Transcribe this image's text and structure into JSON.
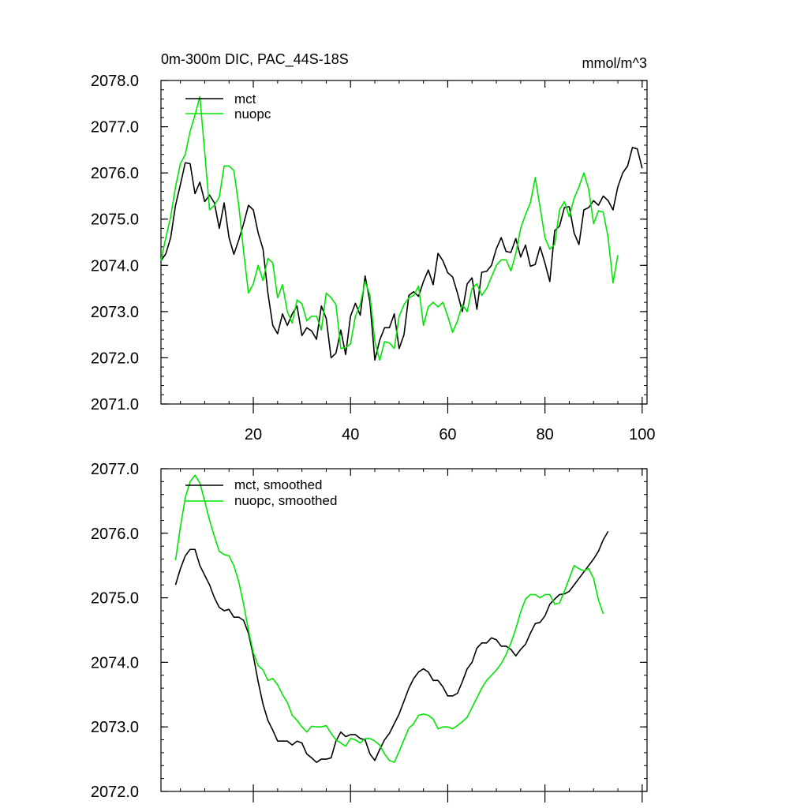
{
  "colors": {
    "mct": "#000000",
    "nuopc": "#00e600",
    "axis": "#000000",
    "background": "#ffffff"
  },
  "chart_data": [
    {
      "type": "line",
      "title": "0m-300m DIC, PAC_44S-18S",
      "units": "mmol/m^3",
      "xlabel": "",
      "ylabel": "",
      "xlim": [
        1,
        101
      ],
      "ylim": [
        2071.0,
        2078.0
      ],
      "xticks": [
        20,
        40,
        60,
        80,
        100
      ],
      "xtick_labels": [
        "20",
        "40",
        "60",
        "80",
        "100"
      ],
      "yticks": [
        2071.0,
        2072.0,
        2073.0,
        2074.0,
        2075.0,
        2076.0,
        2077.0,
        2078.0
      ],
      "ytick_labels": [
        "2071.0",
        "2072.0",
        "2073.0",
        "2074.0",
        "2075.0",
        "2076.0",
        "2077.0",
        "2078.0"
      ],
      "legend_position": "top-left",
      "x_start": 1,
      "series": [
        {
          "name": "mct",
          "color_key": "mct",
          "values": [
            2074.1,
            2074.25,
            2074.6,
            2075.3,
            2075.75,
            2076.22,
            2076.2,
            2075.55,
            2075.8,
            2075.38,
            2075.52,
            2075.35,
            2074.8,
            2075.35,
            2074.6,
            2074.24,
            2074.55,
            2074.9,
            2075.3,
            2075.2,
            2074.7,
            2074.35,
            2073.4,
            2072.7,
            2072.52,
            2072.95,
            2072.7,
            2072.95,
            2073.12,
            2072.48,
            2072.65,
            2072.58,
            2072.4,
            2073.12,
            2072.85,
            2072.0,
            2072.1,
            2072.6,
            2072.07,
            2072.9,
            2073.18,
            2072.92,
            2073.77,
            2073.2,
            2071.95,
            2072.38,
            2072.65,
            2072.65,
            2072.95,
            2072.2,
            2072.5,
            2073.35,
            2073.43,
            2073.33,
            2073.65,
            2073.9,
            2073.58,
            2074.26,
            2074.1,
            2073.84,
            2073.75,
            2073.4,
            2073.0,
            2073.6,
            2073.73,
            2073.05,
            2073.85,
            2073.87,
            2074.0,
            2074.36,
            2074.6,
            2074.3,
            2074.28,
            2074.58,
            2074.18,
            2074.44,
            2073.98,
            2074.02,
            2074.4,
            2074.05,
            2073.65,
            2074.75,
            2074.85,
            2075.25,
            2075.27,
            2074.7,
            2074.45,
            2075.2,
            2075.25,
            2075.4,
            2075.3,
            2075.5,
            2075.4,
            2075.2,
            2075.7,
            2076.0,
            2076.15,
            2076.55,
            2076.52,
            2076.1
          ]
        },
        {
          "name": "nuopc",
          "color_key": "nuopc",
          "values": [
            2074.1,
            2074.6,
            2075.05,
            2075.7,
            2076.2,
            2076.4,
            2076.9,
            2077.25,
            2077.65,
            2076.45,
            2075.2,
            2075.3,
            2075.48,
            2076.15,
            2076.15,
            2076.05,
            2075.3,
            2074.3,
            2073.4,
            2073.6,
            2074.0,
            2073.67,
            2074.15,
            2074.05,
            2073.3,
            2073.58,
            2073.0,
            2072.75,
            2073.25,
            2073.17,
            2072.8,
            2072.9,
            2072.9,
            2072.6,
            2073.4,
            2073.3,
            2073.15,
            2072.2,
            2072.22,
            2072.3,
            2072.9,
            2073.15,
            2073.65,
            2073.35,
            2072.35,
            2071.95,
            2072.35,
            2072.32,
            2072.2,
            2072.9,
            2073.15,
            2073.3,
            2073.35,
            2073.55,
            2072.7,
            2073.1,
            2073.2,
            2073.1,
            2073.2,
            2072.9,
            2072.55,
            2072.8,
            2073.15,
            2073.0,
            2073.5,
            2073.6,
            2073.35,
            2073.5,
            2073.75,
            2074.0,
            2074.12,
            2074.12,
            2073.88,
            2074.25,
            2074.8,
            2075.1,
            2075.35,
            2075.9,
            2075.25,
            2074.6,
            2074.35,
            2074.45,
            2075.2,
            2075.38,
            2075.05,
            2075.45,
            2075.7,
            2076.0,
            2075.65,
            2074.9,
            2075.18,
            2075.15,
            2074.6,
            2073.62,
            2074.22
          ]
        }
      ]
    },
    {
      "type": "line",
      "title": "",
      "xlabel": "",
      "ylabel": "",
      "xlim": [
        1,
        101
      ],
      "ylim": [
        2072.0,
        2077.0
      ],
      "xticks": [
        20,
        40,
        60,
        80,
        100
      ],
      "xtick_labels": [],
      "yticks": [
        2072.0,
        2073.0,
        2074.0,
        2075.0,
        2076.0,
        2077.0
      ],
      "ytick_labels": [
        "2072.0",
        "2073.0",
        "2074.0",
        "2075.0",
        "2076.0",
        "2077.0"
      ],
      "legend_position": "top-left",
      "x_start": 4,
      "series": [
        {
          "name": "mct, smoothed",
          "color_key": "mct",
          "values": [
            2075.2,
            2075.45,
            2075.65,
            2075.75,
            2075.75,
            2075.5,
            2075.35,
            2075.2,
            2075.0,
            2074.85,
            2074.8,
            2074.82,
            2074.7,
            2074.7,
            2074.65,
            2074.45,
            2074.1,
            2073.7,
            2073.35,
            2073.1,
            2072.95,
            2072.78,
            2072.78,
            2072.78,
            2072.72,
            2072.78,
            2072.75,
            2072.58,
            2072.52,
            2072.45,
            2072.5,
            2072.5,
            2072.52,
            2072.78,
            2072.92,
            2072.85,
            2072.88,
            2072.88,
            2072.82,
            2072.8,
            2072.58,
            2072.48,
            2072.65,
            2072.8,
            2072.9,
            2073.05,
            2073.2,
            2073.4,
            2073.6,
            2073.75,
            2073.85,
            2073.9,
            2073.85,
            2073.72,
            2073.72,
            2073.62,
            2073.48,
            2073.48,
            2073.52,
            2073.7,
            2073.9,
            2074.0,
            2074.22,
            2074.3,
            2074.3,
            2074.38,
            2074.35,
            2074.25,
            2074.25,
            2074.2,
            2074.1,
            2074.2,
            2074.28,
            2074.45,
            2074.6,
            2074.62,
            2074.72,
            2074.9,
            2074.98,
            2075.05,
            2075.06,
            2075.1,
            2075.2,
            2075.3,
            2075.4,
            2075.5,
            2075.6,
            2075.72,
            2075.9,
            2076.03
          ]
        },
        {
          "name": "nuopc, smoothed",
          "color_key": "nuopc",
          "values": [
            2075.58,
            2076.1,
            2076.55,
            2076.8,
            2076.9,
            2076.78,
            2076.5,
            2076.2,
            2075.95,
            2075.72,
            2075.67,
            2075.65,
            2075.5,
            2075.25,
            2074.9,
            2074.5,
            2074.15,
            2073.95,
            2073.88,
            2073.72,
            2073.75,
            2073.65,
            2073.5,
            2073.38,
            2073.18,
            2073.1,
            2073.0,
            2072.92,
            2073.01,
            2073.0,
            2073.0,
            2073.02,
            2072.9,
            2072.8,
            2072.75,
            2072.7,
            2072.82,
            2072.8,
            2072.75,
            2072.82,
            2072.82,
            2072.78,
            2072.72,
            2072.58,
            2072.48,
            2072.45,
            2072.62,
            2072.8,
            2072.98,
            2073.05,
            2073.18,
            2073.2,
            2073.18,
            2073.12,
            2072.97,
            2073.0,
            2073.0,
            2072.97,
            2073.02,
            2073.08,
            2073.15,
            2073.3,
            2073.45,
            2073.6,
            2073.72,
            2073.8,
            2073.88,
            2073.98,
            2074.12,
            2074.3,
            2074.52,
            2074.78,
            2074.98,
            2075.05,
            2075.05,
            2075.0,
            2075.05,
            2075.05,
            2074.9,
            2074.92,
            2075.1,
            2075.3,
            2075.5,
            2075.45,
            2075.42,
            2075.45,
            2075.3,
            2074.97,
            2074.75
          ]
        }
      ]
    }
  ]
}
